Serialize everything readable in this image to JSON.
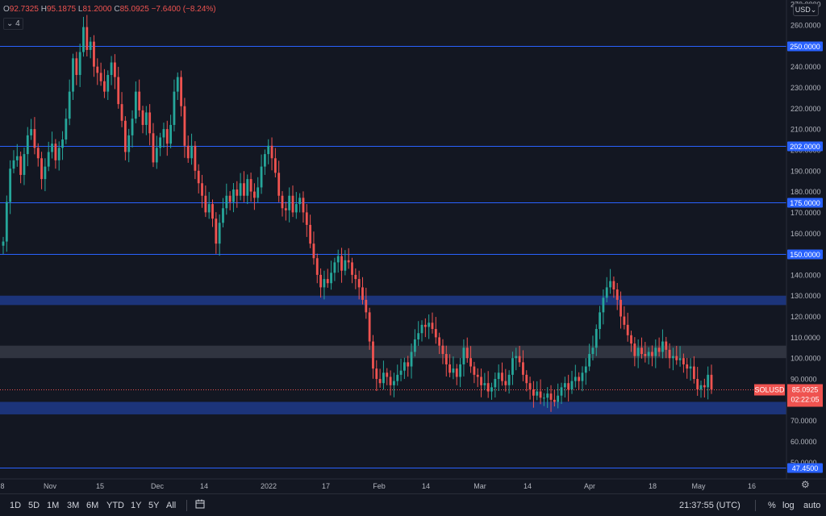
{
  "ohlc": {
    "o_label": "O",
    "o": "92.7325",
    "h_label": "H",
    "h": "95.1875",
    "l_label": "L",
    "l": "81.2000",
    "c_label": "C",
    "c": "85.0925",
    "change": "−7.6400 (−8.24%)"
  },
  "indicator_toggle": "4",
  "currency": "USD",
  "symbol": "SOLUSD",
  "last_price": "85.0925",
  "countdown": "02:22:05",
  "ranges": [
    "1D",
    "5D",
    "1M",
    "3M",
    "6M",
    "YTD",
    "1Y",
    "5Y",
    "All"
  ],
  "clock": "21:37:55 (UTC)",
  "options": {
    "percent": "%",
    "log": "log",
    "auto": "auto"
  },
  "colors": {
    "up": "#26a69a",
    "down": "#ef5350",
    "level": "#2962ff",
    "zone": "#1e3a8a",
    "range_zone": "#363a45",
    "background": "#131722"
  },
  "icons": {
    "calendar": "calendar-icon",
    "settings": "gear-icon",
    "currency_dropdown": "chevron-down-icon"
  },
  "chart_data": {
    "type": "candlestick",
    "title": "",
    "xlabel": "",
    "ylabel": "",
    "ylim": [
      42,
      272
    ],
    "y_ticks": [
      "50.0000",
      "60.0000",
      "70.0000",
      "80.0000",
      "90.0000",
      "100.0000",
      "110.0000",
      "120.0000",
      "130.0000",
      "140.0000",
      "150.0000",
      "160.0000",
      "170.0000",
      "180.0000",
      "190.0000",
      "200.0000",
      "210.0000",
      "220.0000",
      "230.0000",
      "240.0000",
      "250.0000",
      "260.0000",
      "270.0000"
    ],
    "x_ticks": [
      "8",
      "Nov",
      "15",
      "Dec",
      "14",
      "2022",
      "17",
      "Feb",
      "14",
      "Mar",
      "14",
      "Apr",
      "18",
      "May",
      "16"
    ],
    "horizontal_levels": [
      {
        "value": 250,
        "label": "250.0000"
      },
      {
        "value": 202,
        "label": "202.0000"
      },
      {
        "value": 175,
        "label": "175.0000"
      },
      {
        "value": 150,
        "label": "150.0000"
      },
      {
        "value": 47.45,
        "label": "47.4500"
      }
    ],
    "zones": [
      {
        "name": "blue-zone-130",
        "from": 125.5,
        "to": 130,
        "color": "#1e3a8a"
      },
      {
        "name": "gray-zone-100",
        "from": 100,
        "to": 106,
        "color": "#363a45"
      },
      {
        "name": "blue-zone-76",
        "from": 73,
        "to": 79,
        "color": "#1e3a8a"
      }
    ],
    "current_price": 85.0925,
    "candles": [
      {
        "o": 154,
        "c": 156
      },
      {
        "o": 156,
        "c": 175
      },
      {
        "o": 175,
        "c": 191
      },
      {
        "o": 191,
        "c": 195
      },
      {
        "o": 195,
        "c": 197
      },
      {
        "o": 197,
        "c": 188
      },
      {
        "o": 188,
        "c": 198
      },
      {
        "o": 198,
        "c": 207
      },
      {
        "o": 207,
        "c": 210
      },
      {
        "o": 210,
        "c": 201
      },
      {
        "o": 201,
        "c": 196
      },
      {
        "o": 196,
        "c": 186
      },
      {
        "o": 186,
        "c": 192
      },
      {
        "o": 192,
        "c": 199
      },
      {
        "o": 199,
        "c": 203
      },
      {
        "o": 203,
        "c": 195
      },
      {
        "o": 195,
        "c": 201
      },
      {
        "o": 201,
        "c": 205
      },
      {
        "o": 205,
        "c": 215
      },
      {
        "o": 215,
        "c": 228
      },
      {
        "o": 228,
        "c": 244
      },
      {
        "o": 244,
        "c": 236
      },
      {
        "o": 236,
        "c": 247
      },
      {
        "o": 247,
        "c": 259
      },
      {
        "o": 259,
        "c": 248
      },
      {
        "o": 248,
        "c": 252
      },
      {
        "o": 252,
        "c": 240
      },
      {
        "o": 240,
        "c": 237
      },
      {
        "o": 237,
        "c": 233
      },
      {
        "o": 233,
        "c": 228
      },
      {
        "o": 228,
        "c": 236
      },
      {
        "o": 236,
        "c": 242
      },
      {
        "o": 242,
        "c": 235
      },
      {
        "o": 235,
        "c": 222
      },
      {
        "o": 222,
        "c": 214
      },
      {
        "o": 214,
        "c": 199
      },
      {
        "o": 199,
        "c": 207
      },
      {
        "o": 207,
        "c": 215
      },
      {
        "o": 215,
        "c": 228
      },
      {
        "o": 228,
        "c": 219
      },
      {
        "o": 219,
        "c": 212
      },
      {
        "o": 212,
        "c": 218
      },
      {
        "o": 218,
        "c": 208
      },
      {
        "o": 208,
        "c": 194
      },
      {
        "o": 194,
        "c": 201
      },
      {
        "o": 201,
        "c": 206
      },
      {
        "o": 206,
        "c": 210
      },
      {
        "o": 210,
        "c": 203
      },
      {
        "o": 203,
        "c": 212
      },
      {
        "o": 212,
        "c": 228
      },
      {
        "o": 228,
        "c": 235
      },
      {
        "o": 235,
        "c": 221
      },
      {
        "o": 221,
        "c": 202
      },
      {
        "o": 202,
        "c": 196
      },
      {
        "o": 196,
        "c": 202
      },
      {
        "o": 202,
        "c": 190
      },
      {
        "o": 190,
        "c": 184
      },
      {
        "o": 184,
        "c": 178
      },
      {
        "o": 178,
        "c": 170
      },
      {
        "o": 170,
        "c": 174
      },
      {
        "o": 174,
        "c": 167
      },
      {
        "o": 167,
        "c": 155
      },
      {
        "o": 155,
        "c": 165
      },
      {
        "o": 165,
        "c": 172
      },
      {
        "o": 172,
        "c": 178
      },
      {
        "o": 178,
        "c": 175
      },
      {
        "o": 175,
        "c": 181
      },
      {
        "o": 181,
        "c": 178
      },
      {
        "o": 178,
        "c": 184
      },
      {
        "o": 184,
        "c": 178
      },
      {
        "o": 178,
        "c": 186
      },
      {
        "o": 186,
        "c": 180
      },
      {
        "o": 180,
        "c": 177
      },
      {
        "o": 177,
        "c": 182
      },
      {
        "o": 182,
        "c": 192
      },
      {
        "o": 192,
        "c": 198
      },
      {
        "o": 198,
        "c": 202
      },
      {
        "o": 202,
        "c": 196
      },
      {
        "o": 196,
        "c": 189
      },
      {
        "o": 189,
        "c": 178
      },
      {
        "o": 178,
        "c": 172
      },
      {
        "o": 172,
        "c": 171
      },
      {
        "o": 171,
        "c": 178
      },
      {
        "o": 178,
        "c": 170
      },
      {
        "o": 170,
        "c": 174
      },
      {
        "o": 174,
        "c": 177
      },
      {
        "o": 177,
        "c": 170
      },
      {
        "o": 170,
        "c": 164
      },
      {
        "o": 164,
        "c": 155
      },
      {
        "o": 155,
        "c": 148
      },
      {
        "o": 148,
        "c": 140
      },
      {
        "o": 140,
        "c": 134
      },
      {
        "o": 134,
        "c": 138
      },
      {
        "o": 138,
        "c": 136
      },
      {
        "o": 136,
        "c": 141
      },
      {
        "o": 141,
        "c": 146
      },
      {
        "o": 146,
        "c": 149
      },
      {
        "o": 149,
        "c": 142
      },
      {
        "o": 142,
        "c": 147
      },
      {
        "o": 147,
        "c": 146
      },
      {
        "o": 146,
        "c": 140
      },
      {
        "o": 140,
        "c": 138
      },
      {
        "o": 138,
        "c": 134
      },
      {
        "o": 134,
        "c": 128
      },
      {
        "o": 128,
        "c": 122
      },
      {
        "o": 122,
        "c": 108
      },
      {
        "o": 108,
        "c": 95
      },
      {
        "o": 95,
        "c": 90
      },
      {
        "o": 90,
        "c": 88
      },
      {
        "o": 88,
        "c": 93
      },
      {
        "o": 93,
        "c": 91
      },
      {
        "o": 91,
        "c": 87
      },
      {
        "o": 87,
        "c": 89
      },
      {
        "o": 89,
        "c": 92
      },
      {
        "o": 92,
        "c": 94
      },
      {
        "o": 94,
        "c": 98
      },
      {
        "o": 98,
        "c": 96
      },
      {
        "o": 96,
        "c": 103
      },
      {
        "o": 103,
        "c": 109
      },
      {
        "o": 109,
        "c": 112
      },
      {
        "o": 112,
        "c": 116
      },
      {
        "o": 116,
        "c": 115
      },
      {
        "o": 115,
        "c": 117
      },
      {
        "o": 117,
        "c": 114
      },
      {
        "o": 114,
        "c": 110
      },
      {
        "o": 110,
        "c": 106
      },
      {
        "o": 106,
        "c": 102
      },
      {
        "o": 102,
        "c": 97
      },
      {
        "o": 97,
        "c": 93
      },
      {
        "o": 93,
        "c": 95
      },
      {
        "o": 95,
        "c": 91
      },
      {
        "o": 91,
        "c": 97
      },
      {
        "o": 97,
        "c": 105
      },
      {
        "o": 105,
        "c": 100
      },
      {
        "o": 100,
        "c": 96
      },
      {
        "o": 96,
        "c": 92
      },
      {
        "o": 92,
        "c": 91
      },
      {
        "o": 91,
        "c": 87
      },
      {
        "o": 87,
        "c": 88
      },
      {
        "o": 88,
        "c": 84
      },
      {
        "o": 84,
        "c": 86
      },
      {
        "o": 86,
        "c": 90
      },
      {
        "o": 90,
        "c": 93
      },
      {
        "o": 93,
        "c": 89
      },
      {
        "o": 89,
        "c": 87
      },
      {
        "o": 87,
        "c": 92
      },
      {
        "o": 92,
        "c": 100
      },
      {
        "o": 100,
        "c": 101
      },
      {
        "o": 101,
        "c": 98
      },
      {
        "o": 98,
        "c": 92
      },
      {
        "o": 92,
        "c": 88
      },
      {
        "o": 88,
        "c": 85
      },
      {
        "o": 85,
        "c": 82
      },
      {
        "o": 82,
        "c": 84
      },
      {
        "o": 84,
        "c": 81
      },
      {
        "o": 81,
        "c": 81
      },
      {
        "o": 81,
        "c": 83
      },
      {
        "o": 83,
        "c": 80
      },
      {
        "o": 80,
        "c": 79
      },
      {
        "o": 79,
        "c": 82
      },
      {
        "o": 82,
        "c": 86
      },
      {
        "o": 86,
        "c": 88
      },
      {
        "o": 88,
        "c": 85
      },
      {
        "o": 85,
        "c": 89
      },
      {
        "o": 89,
        "c": 91
      },
      {
        "o": 91,
        "c": 89
      },
      {
        "o": 89,
        "c": 93
      },
      {
        "o": 93,
        "c": 96
      },
      {
        "o": 96,
        "c": 102
      },
      {
        "o": 102,
        "c": 105
      },
      {
        "o": 105,
        "c": 114
      },
      {
        "o": 114,
        "c": 122
      },
      {
        "o": 122,
        "c": 129
      },
      {
        "o": 129,
        "c": 134
      },
      {
        "o": 134,
        "c": 137
      },
      {
        "o": 137,
        "c": 133
      },
      {
        "o": 133,
        "c": 128
      },
      {
        "o": 128,
        "c": 120
      },
      {
        "o": 120,
        "c": 116
      },
      {
        "o": 116,
        "c": 111
      },
      {
        "o": 111,
        "c": 107
      },
      {
        "o": 107,
        "c": 101
      },
      {
        "o": 101,
        "c": 105
      },
      {
        "o": 105,
        "c": 102
      },
      {
        "o": 102,
        "c": 101
      },
      {
        "o": 101,
        "c": 103
      },
      {
        "o": 103,
        "c": 101
      },
      {
        "o": 101,
        "c": 105
      },
      {
        "o": 105,
        "c": 103
      },
      {
        "o": 103,
        "c": 108
      },
      {
        "o": 108,
        "c": 104
      },
      {
        "o": 104,
        "c": 100
      },
      {
        "o": 100,
        "c": 101
      },
      {
        "o": 101,
        "c": 99
      },
      {
        "o": 99,
        "c": 100
      },
      {
        "o": 100,
        "c": 97
      },
      {
        "o": 97,
        "c": 95
      },
      {
        "o": 95,
        "c": 96
      },
      {
        "o": 96,
        "c": 90
      },
      {
        "o": 90,
        "c": 85
      },
      {
        "o": 85,
        "c": 87
      },
      {
        "o": 87,
        "c": 86
      },
      {
        "o": 86,
        "c": 92
      },
      {
        "o": 92,
        "c": 85
      }
    ]
  }
}
